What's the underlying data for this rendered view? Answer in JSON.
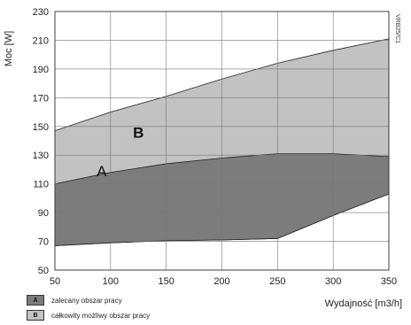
{
  "chart_data": {
    "type": "area",
    "title": "",
    "xlabel": "Wydajność [m3/h]",
    "ylabel": "Moc [W]",
    "xlim": [
      50,
      350
    ],
    "ylim": [
      50,
      230
    ],
    "xticks": [
      50,
      100,
      150,
      200,
      250,
      300,
      350
    ],
    "yticks": [
      50,
      70,
      90,
      110,
      130,
      150,
      170,
      190,
      210,
      230
    ],
    "grid": true,
    "side_code": "VRB25/C1",
    "regions": [
      {
        "label": "B",
        "name": "całkowity możliwy obszar pracy",
        "color": "#c2c2c2",
        "label_at": [
          125,
          145
        ],
        "upper": [
          [
            50,
            147
          ],
          [
            100,
            160
          ],
          [
            150,
            171
          ],
          [
            200,
            183
          ],
          [
            250,
            194
          ],
          [
            300,
            203
          ],
          [
            350,
            211
          ]
        ],
        "lower": [
          [
            50,
            67
          ],
          [
            100,
            69
          ],
          [
            150,
            70.5
          ],
          [
            200,
            71
          ],
          [
            250,
            72
          ],
          [
            300,
            88
          ],
          [
            350,
            103
          ]
        ]
      },
      {
        "label": "A",
        "name": "zalecany obszar pracy",
        "color": "#7c7c7c",
        "label_at": [
          92,
          118
        ],
        "upper": [
          [
            50,
            110
          ],
          [
            100,
            118
          ],
          [
            150,
            124
          ],
          [
            200,
            128
          ],
          [
            250,
            131
          ],
          [
            300,
            131
          ],
          [
            350,
            129
          ]
        ],
        "lower": [
          [
            50,
            67
          ],
          [
            100,
            69
          ],
          [
            150,
            70.5
          ],
          [
            200,
            71
          ],
          [
            250,
            72
          ],
          [
            300,
            88
          ],
          [
            350,
            103
          ]
        ]
      }
    ]
  },
  "legend": [
    {
      "key": "A",
      "label": "zalecany obszar pracy",
      "color": "#7c7c7c"
    },
    {
      "key": "B",
      "label": "całkowity możliwy obszar pracy",
      "color": "#c2c2c2"
    }
  ]
}
